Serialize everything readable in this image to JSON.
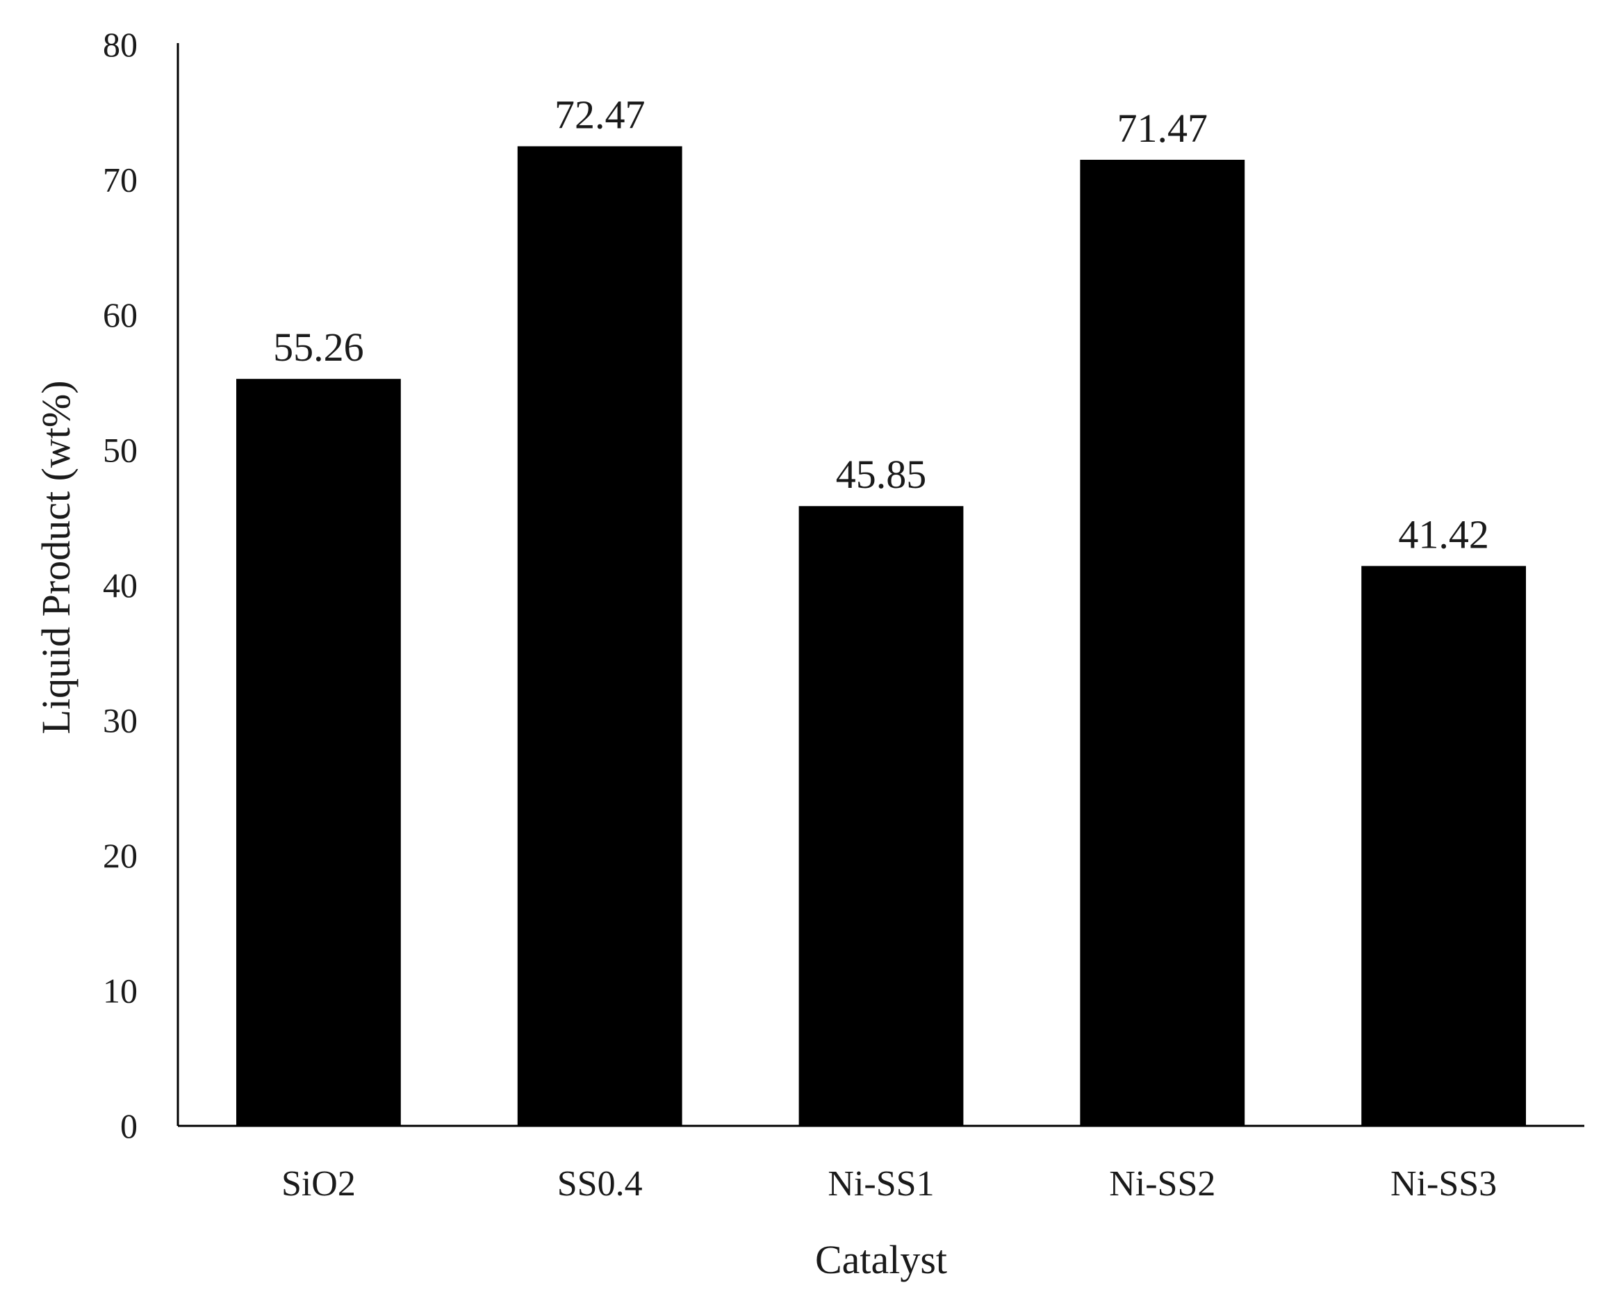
{
  "chart_data": {
    "type": "bar",
    "title": "",
    "xlabel": "Catalyst",
    "ylabel": "Liquid Product (wt%)",
    "categories": [
      "SiO2",
      "SS0.4",
      "Ni-SS1",
      "Ni-SS2",
      "Ni-SS3"
    ],
    "values": [
      55.26,
      72.47,
      45.85,
      71.47,
      41.42
    ],
    "data_labels": [
      "55.26",
      "72.47",
      "45.85",
      "71.47",
      "41.42"
    ],
    "ylim": [
      0,
      80
    ],
    "yticks": [
      0,
      10,
      20,
      30,
      40,
      50,
      60,
      70,
      80
    ],
    "grid": false,
    "legend": "none",
    "bar_color": "#000000"
  }
}
